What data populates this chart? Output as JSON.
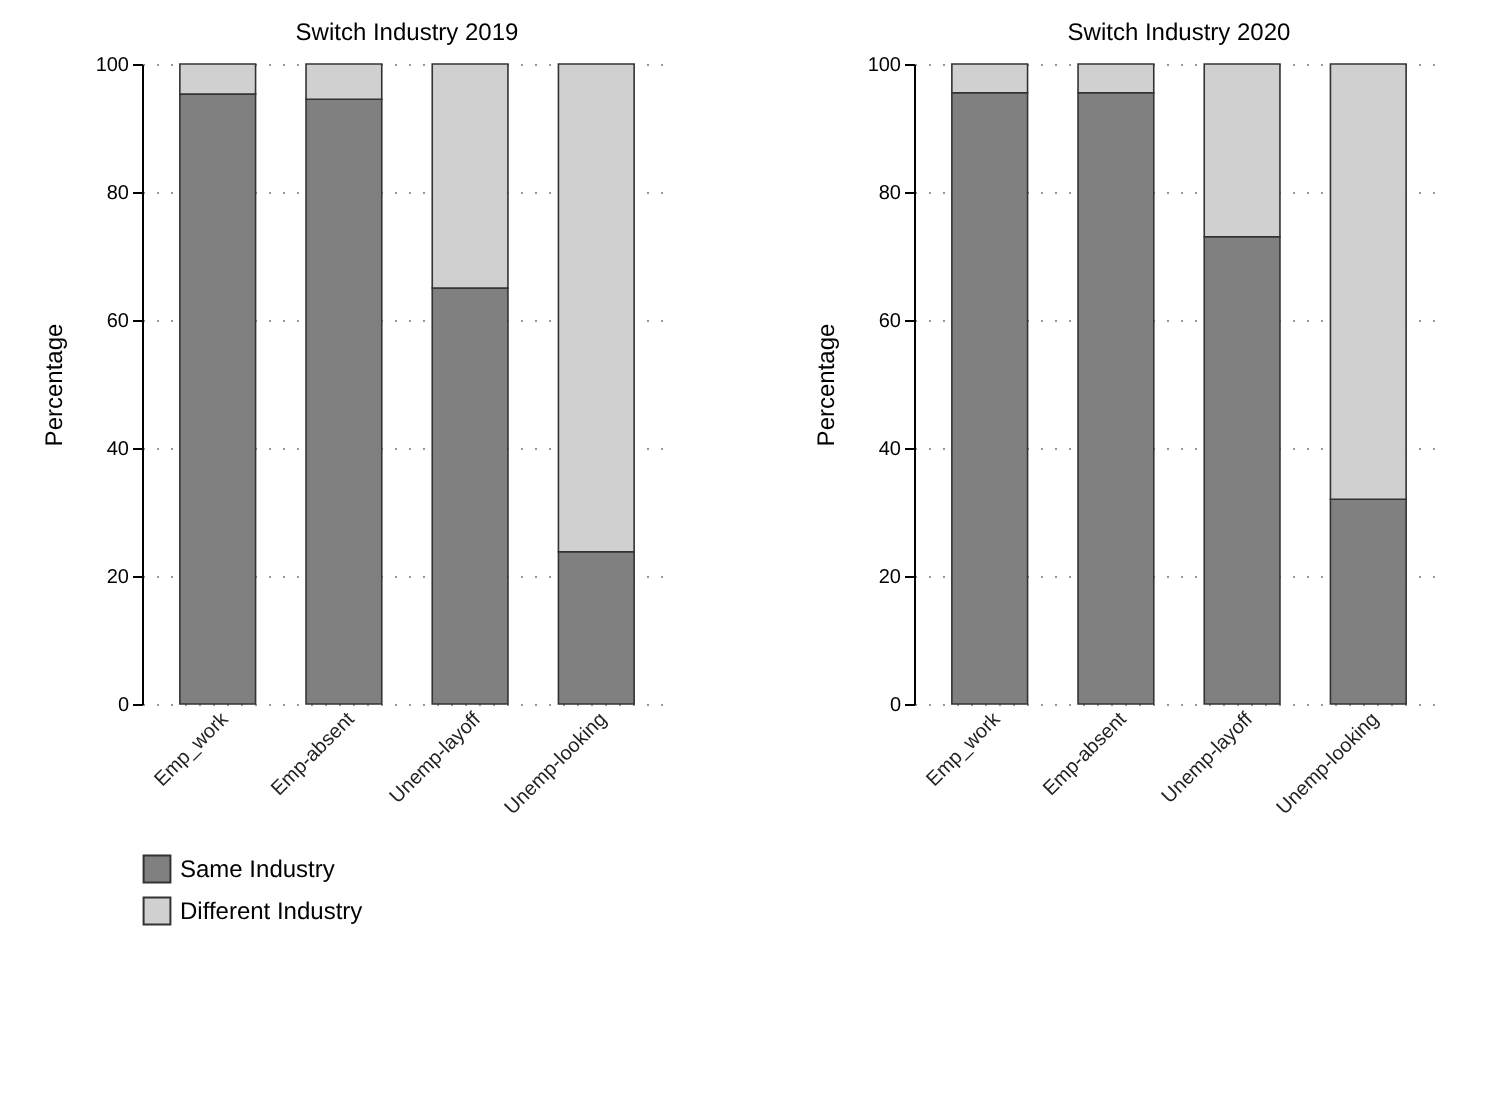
{
  "chart_data": [
    {
      "type": "bar",
      "title": "Switch Industry 2019",
      "ylabel": "Percentage",
      "categories": [
        "Emp_work",
        "Emp-absent",
        "Unemp-layoff",
        "Unemp-looking"
      ],
      "stacked": true,
      "ylim": [
        0,
        100
      ],
      "yticks": [
        0,
        20,
        40,
        60,
        80,
        100
      ],
      "grid": "y",
      "legend": "bottom",
      "series": [
        {
          "name": "Same Industry",
          "color": "#808080",
          "values": [
            95.3,
            94.5,
            65,
            23.8
          ]
        },
        {
          "name": "Different Industry",
          "color": "#d0d0d0",
          "values": [
            4.7,
            5.5,
            35,
            76.2
          ]
        }
      ]
    },
    {
      "type": "bar",
      "title": "Switch Industry 2020",
      "ylabel": "Percentage",
      "categories": [
        "Emp_work",
        "Emp-absent",
        "Unemp-layoff",
        "Unemp-looking"
      ],
      "stacked": true,
      "ylim": [
        0,
        100
      ],
      "yticks": [
        0,
        20,
        40,
        60,
        80,
        100
      ],
      "grid": "y",
      "legend": "bottom",
      "series": [
        {
          "name": "Same Industry",
          "color": "#808080",
          "values": [
            95.5,
            95.5,
            73,
            32
          ]
        },
        {
          "name": "Different Industry",
          "color": "#d0d0d0",
          "values": [
            4.5,
            4.5,
            27,
            68
          ]
        }
      ]
    }
  ]
}
